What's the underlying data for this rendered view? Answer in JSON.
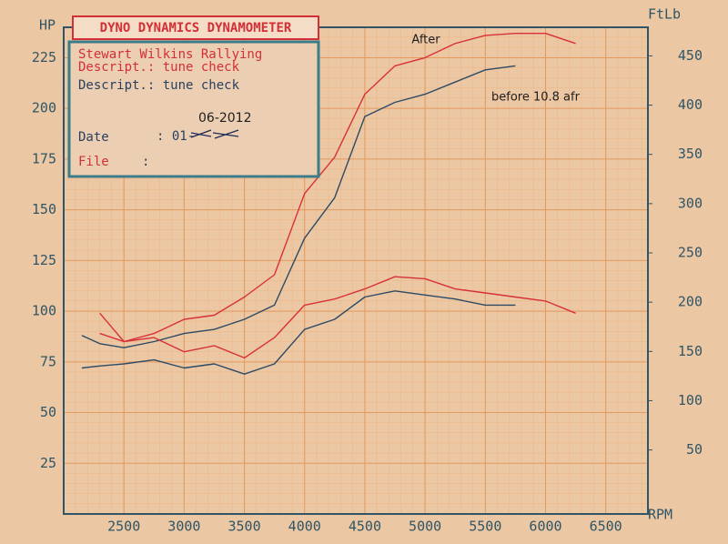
{
  "chart_data": {
    "type": "line",
    "info": {
      "title": "DYNO DYNAMICS DYNAMOMETER",
      "customer": "Stewart Wilkins Rallying",
      "description_1": "Descript.: tune check",
      "description_2": "Descript.: tune check",
      "date_label": "Date",
      "date_value": ": 01-",
      "date_handwritten": "06-2012",
      "file_label": "File",
      "file_value": ":"
    },
    "ylabel": "HP",
    "y2label": "FtLb",
    "xlabel": "RPM",
    "annotations": [
      "After",
      "before 10.8 afr"
    ],
    "x": [
      2150,
      2300,
      2500,
      2750,
      3000,
      3250,
      3500,
      3750,
      4000,
      4250,
      4500,
      4750,
      5000,
      5250,
      5500,
      5750,
      6000,
      6250
    ],
    "series": [
      {
        "color": "#d8303a",
        "values": [
          null,
          99,
          85,
          89,
          96,
          98,
          107,
          118,
          158,
          176,
          207,
          221,
          225,
          232,
          236,
          237,
          237,
          232
        ]
      },
      {
        "color": "#2c4a66",
        "values": [
          88,
          84,
          82,
          85,
          89,
          91,
          96,
          103,
          136,
          156,
          196,
          203,
          207,
          213,
          219,
          221,
          null,
          null
        ]
      },
      {
        "color": "#d8303a",
        "values": [
          null,
          89,
          85,
          87,
          80,
          83,
          77,
          87,
          103,
          106,
          111,
          117,
          116,
          111,
          109,
          107,
          105,
          99
        ]
      },
      {
        "color": "#2c4a66",
        "values": [
          72,
          73,
          74,
          76,
          72,
          74,
          69,
          74,
          91,
          96,
          107,
          110,
          108,
          106,
          103,
          103,
          null,
          null
        ]
      }
    ],
    "xlim": [
      2000,
      6850
    ],
    "xticks": [
      2500,
      3000,
      3500,
      4000,
      4500,
      5000,
      5500,
      6000,
      6500
    ],
    "ylim": [
      0,
      240
    ],
    "yticks": [
      25,
      50,
      75,
      100,
      125,
      150,
      175,
      200,
      225
    ],
    "y2lim": [
      -15,
      479
    ],
    "y2ticks": [
      50,
      100,
      150,
      200,
      250,
      300,
      350,
      400,
      450
    ],
    "grid": true
  }
}
